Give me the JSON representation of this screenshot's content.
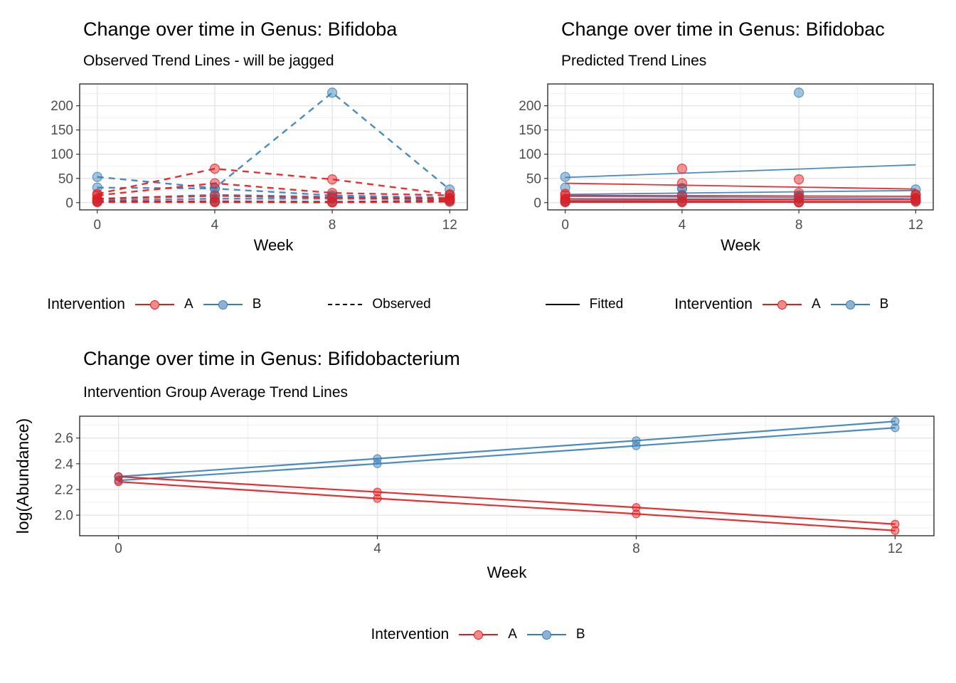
{
  "colors": {
    "intervention_a": "#E41A1C",
    "intervention_b": "#377EB8",
    "a_point_fill": "#EF8A8B",
    "b_point_fill": "#8FB2D4",
    "linetype_key": "#000000",
    "grid_major": "#E3E3E3",
    "grid_minor": "#F0F0F0",
    "panel_border": "#2F2F2F",
    "axis_text": "#4D4D4D",
    "title_text": "#000000"
  },
  "legends": {
    "observed": {
      "title": "Intervention",
      "items": [
        {
          "label": "A"
        },
        {
          "label": "B"
        }
      ],
      "linetype_label": "Observed"
    },
    "fitted": {
      "linetype_label": "Fitted",
      "title": "Intervention",
      "items": [
        {
          "label": "A"
        },
        {
          "label": "B"
        }
      ]
    },
    "average": {
      "title": "Intervention",
      "items": [
        {
          "label": "A"
        },
        {
          "label": "B"
        }
      ]
    }
  },
  "chart_data": [
    {
      "type": "line",
      "title": "Change over time in Genus: Bifidoba",
      "subtitle": "Observed Trend Lines - will be jagged",
      "xlabel": "Week",
      "ylabel": "",
      "x": [
        0,
        4,
        8,
        12
      ],
      "xlim": [
        -0.6,
        12.6
      ],
      "ylim": [
        -15,
        245
      ],
      "x_ticks": {
        "values": [
          0,
          4,
          8,
          12
        ],
        "labels": [
          "0",
          "4",
          "8",
          "12"
        ]
      },
      "x_minor": [
        2,
        6,
        10
      ],
      "y_ticks": {
        "values": [
          0,
          50,
          100,
          150,
          200
        ],
        "labels": [
          "0",
          "50",
          "100",
          "150",
          "200"
        ]
      },
      "y_minor": [
        25,
        75,
        125,
        175,
        225
      ],
      "line_style": "dashed",
      "legend_position": "bottom",
      "grid": true,
      "series": [
        {
          "name": "subject-B1",
          "group": "B",
          "points": true,
          "values": [
            53,
            30,
            227,
            27
          ]
        },
        {
          "name": "subject-B2",
          "group": "B",
          "points": true,
          "values": [
            31,
            29,
            15,
            10
          ]
        },
        {
          "name": "subject-B3",
          "group": "B",
          "points": true,
          "values": [
            8,
            16,
            12,
            9
          ]
        },
        {
          "name": "subject-B4",
          "group": "B",
          "points": true,
          "values": [
            5,
            8,
            8,
            7
          ]
        },
        {
          "name": "subject-B5",
          "group": "B",
          "points": true,
          "values": [
            2,
            3,
            2,
            3
          ]
        },
        {
          "name": "subject-A1",
          "group": "A",
          "points": true,
          "values": [
            18,
            70,
            48,
            17
          ]
        },
        {
          "name": "subject-A2",
          "group": "A",
          "points": true,
          "values": [
            15,
            40,
            20,
            15
          ]
        },
        {
          "name": "subject-A3",
          "group": "A",
          "points": true,
          "values": [
            8,
            14,
            10,
            8
          ]
        },
        {
          "name": "subject-A4",
          "group": "A",
          "points": true,
          "values": [
            3,
            2,
            1,
            5
          ]
        },
        {
          "name": "subject-A5",
          "group": "A",
          "points": true,
          "values": [
            1,
            1,
            0.5,
            2
          ]
        }
      ]
    },
    {
      "type": "line",
      "title": "Change over time in Genus: Bifidobac",
      "subtitle": "Predicted Trend Lines",
      "xlabel": "Week",
      "ylabel": "",
      "x": [
        0,
        4,
        8,
        12
      ],
      "xlim": [
        -0.6,
        12.6
      ],
      "ylim": [
        -15,
        245
      ],
      "x_ticks": {
        "values": [
          0,
          4,
          8,
          12
        ],
        "labels": [
          "0",
          "4",
          "8",
          "12"
        ]
      },
      "x_minor": [
        2,
        6,
        10
      ],
      "y_ticks": {
        "values": [
          0,
          50,
          100,
          150,
          200
        ],
        "labels": [
          "0",
          "50",
          "100",
          "150",
          "200"
        ]
      },
      "y_minor": [
        25,
        75,
        125,
        175,
        225
      ],
      "line_style": "solid",
      "legend_position": "bottom",
      "grid": true,
      "series": [
        {
          "name": "fitted-B1",
          "group": "B",
          "x": [
            0,
            12
          ],
          "values": [
            52,
            78
          ]
        },
        {
          "name": "fitted-B2",
          "group": "B",
          "x": [
            0,
            12
          ],
          "values": [
            17,
            25
          ]
        },
        {
          "name": "fitted-B3",
          "group": "B",
          "x": [
            0,
            12
          ],
          "values": [
            13,
            9
          ]
        },
        {
          "name": "fitted-B4",
          "group": "B",
          "x": [
            0,
            12
          ],
          "values": [
            5,
            6
          ]
        },
        {
          "name": "fitted-B5",
          "group": "B",
          "x": [
            0,
            12
          ],
          "values": [
            1,
            2
          ]
        },
        {
          "name": "fitted-A1",
          "group": "A",
          "x": [
            0,
            12
          ],
          "values": [
            40,
            28
          ]
        },
        {
          "name": "fitted-A2",
          "group": "A",
          "x": [
            0,
            12
          ],
          "values": [
            15,
            13
          ]
        },
        {
          "name": "fitted-A3",
          "group": "A",
          "x": [
            0,
            12
          ],
          "values": [
            8,
            6
          ]
        },
        {
          "name": "fitted-A4",
          "group": "A",
          "x": [
            0,
            12
          ],
          "values": [
            3,
            2
          ]
        },
        {
          "name": "fitted-A5",
          "group": "A",
          "x": [
            0,
            12
          ],
          "values": [
            1,
            1
          ]
        },
        {
          "name": "points-B1",
          "group": "B",
          "line": "none",
          "points": true,
          "values": [
            53,
            30,
            227,
            27
          ]
        },
        {
          "name": "points-B2",
          "group": "B",
          "line": "none",
          "points": true,
          "values": [
            31,
            29,
            15,
            10
          ]
        },
        {
          "name": "points-B3",
          "group": "B",
          "line": "none",
          "points": true,
          "values": [
            8,
            16,
            12,
            9
          ]
        },
        {
          "name": "points-B4",
          "group": "B",
          "line": "none",
          "points": true,
          "values": [
            5,
            8,
            8,
            7
          ]
        },
        {
          "name": "points-B5",
          "group": "B",
          "line": "none",
          "points": true,
          "values": [
            2,
            3,
            2,
            3
          ]
        },
        {
          "name": "points-A1",
          "group": "A",
          "line": "none",
          "points": true,
          "values": [
            18,
            70,
            48,
            17
          ]
        },
        {
          "name": "points-A2",
          "group": "A",
          "line": "none",
          "points": true,
          "values": [
            15,
            40,
            20,
            15
          ]
        },
        {
          "name": "points-A3",
          "group": "A",
          "line": "none",
          "points": true,
          "values": [
            8,
            14,
            10,
            8
          ]
        },
        {
          "name": "points-A4",
          "group": "A",
          "line": "none",
          "points": true,
          "values": [
            3,
            2,
            1,
            5
          ]
        },
        {
          "name": "points-A5",
          "group": "A",
          "line": "none",
          "points": true,
          "values": [
            1,
            1,
            0.5,
            2
          ]
        }
      ]
    },
    {
      "type": "line",
      "title": "Change over time in Genus: Bifidobacterium",
      "subtitle": "Intervention Group Average Trend Lines",
      "xlabel": "Week",
      "ylabel": "log(Abundance)",
      "x": [
        0,
        4,
        8,
        12
      ],
      "xlim": [
        -0.6,
        12.6
      ],
      "ylim": [
        1.84,
        2.77
      ],
      "x_ticks": {
        "values": [
          0,
          4,
          8,
          12
        ],
        "labels": [
          "0",
          "4",
          "8",
          "12"
        ]
      },
      "x_minor": [
        2,
        6,
        10
      ],
      "y_ticks": {
        "values": [
          2.0,
          2.2,
          2.4,
          2.6
        ],
        "labels": [
          "2.0",
          "2.2",
          "2.4",
          "2.6"
        ]
      },
      "y_minor": [
        1.9,
        2.1,
        2.3,
        2.5,
        2.7
      ],
      "line_style": "solid",
      "legend_position": "bottom",
      "grid": true,
      "series": [
        {
          "name": "avg-B-line1",
          "group": "B",
          "points": true,
          "values": [
            2.3,
            2.44,
            2.58,
            2.73
          ]
        },
        {
          "name": "avg-B-line2",
          "group": "B",
          "points": true,
          "values": [
            2.27,
            2.4,
            2.54,
            2.68
          ]
        },
        {
          "name": "avg-A-line1",
          "group": "A",
          "points": true,
          "values": [
            2.3,
            2.18,
            2.06,
            1.93
          ]
        },
        {
          "name": "avg-A-line2",
          "group": "A",
          "points": true,
          "values": [
            2.26,
            2.13,
            2.01,
            1.88
          ]
        }
      ]
    }
  ]
}
